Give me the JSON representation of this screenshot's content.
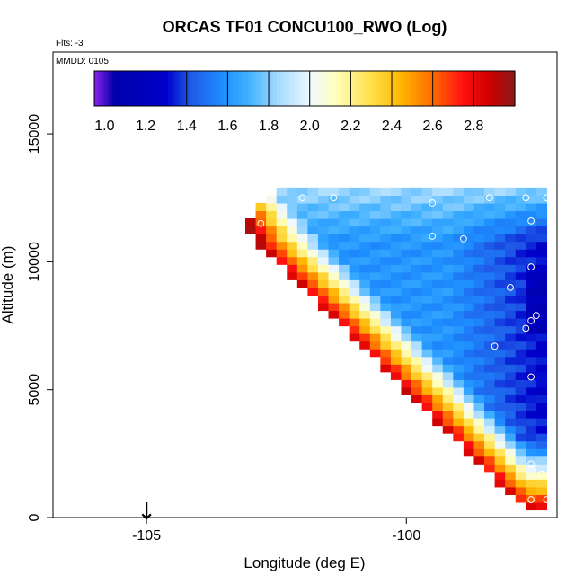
{
  "chart_data": {
    "type": "heatmap",
    "title": "ORCAS TF01 CONCU100_RWO (Log)",
    "flights_note": "Flts: -3",
    "date_note": "MMDD: 0105",
    "xlabel": "Longitude (deg E)",
    "ylabel": "Altitude (m)",
    "xlim": [
      -106.8,
      -97.1
    ],
    "ylim": [
      0,
      18200
    ],
    "x_ticks": [
      -105,
      -100
    ],
    "x_tick_labels": [
      "-105",
      "-100"
    ],
    "y_ticks": [
      0,
      5000,
      10000,
      15000
    ],
    "y_tick_labels": [
      "0",
      "5000",
      "10000",
      "15000"
    ],
    "colorbar": {
      "min": 0.95,
      "max": 3.0,
      "tick_values": [
        1.0,
        1.2,
        1.4,
        1.6,
        1.8,
        2.0,
        2.2,
        2.4,
        2.6,
        2.8
      ],
      "tick_labels": [
        "1.0",
        "1.2",
        "1.4",
        "1.6",
        "1.8",
        "2.0",
        "2.2",
        "2.4",
        "2.6",
        "2.8"
      ],
      "boundaries": [
        0.95,
        1.4,
        1.6,
        1.8,
        2.0,
        2.2,
        2.4,
        2.6,
        2.8,
        3.0
      ]
    },
    "color_stops": [
      {
        "v": 0.95,
        "c": "#8b20e8"
      },
      {
        "v": 1.05,
        "c": "#0000aa"
      },
      {
        "v": 1.3,
        "c": "#0000cc"
      },
      {
        "v": 1.42,
        "c": "#1e5ae8"
      },
      {
        "v": 1.58,
        "c": "#1e90ff"
      },
      {
        "v": 1.7,
        "c": "#3fb0ff"
      },
      {
        "v": 1.85,
        "c": "#a8dcff"
      },
      {
        "v": 2.0,
        "c": "#eef8ff"
      },
      {
        "v": 2.12,
        "c": "#ffffc0"
      },
      {
        "v": 2.3,
        "c": "#ffe04a"
      },
      {
        "v": 2.45,
        "c": "#ffb400"
      },
      {
        "v": 2.6,
        "c": "#ff6a00"
      },
      {
        "v": 2.75,
        "c": "#ff1010"
      },
      {
        "v": 2.88,
        "c": "#cc0000"
      },
      {
        "v": 3.0,
        "c": "#8b1a1a"
      }
    ],
    "domain": {
      "lon_step": 0.2,
      "alt_step": 300,
      "lon_max": -97.3,
      "upper_edge": [
        [
          -103.0,
          11600
        ],
        [
          -102.4,
          12800
        ],
        [
          -97.3,
          12800
        ]
      ],
      "lower_edge": [
        [
          -103.0,
          11200
        ],
        [
          -97.7,
          400
        ],
        [
          -97.3,
          400
        ]
      ]
    },
    "flight_point_color": "#ffffff",
    "flight_points": [
      {
        "lon": -101.5,
        "alt": 13600
      },
      {
        "lon": -100.9,
        "alt": 13500
      },
      {
        "lon": -100.9,
        "alt": 13100
      },
      {
        "lon": -102.8,
        "alt": 11500
      },
      {
        "lon": -102.0,
        "alt": 12500
      },
      {
        "lon": -101.4,
        "alt": 12500
      },
      {
        "lon": -99.5,
        "alt": 12300
      },
      {
        "lon": -98.4,
        "alt": 12500
      },
      {
        "lon": -97.7,
        "alt": 12500
      },
      {
        "lon": -97.3,
        "alt": 12500
      },
      {
        "lon": -97.6,
        "alt": 11600
      },
      {
        "lon": -99.5,
        "alt": 11000
      },
      {
        "lon": -98.9,
        "alt": 10900
      },
      {
        "lon": -97.6,
        "alt": 9800
      },
      {
        "lon": -98.0,
        "alt": 9000
      },
      {
        "lon": -97.5,
        "alt": 7900
      },
      {
        "lon": -97.6,
        "alt": 7700
      },
      {
        "lon": -97.7,
        "alt": 7400
      },
      {
        "lon": -98.3,
        "alt": 6700
      },
      {
        "lon": -97.6,
        "alt": 5500
      },
      {
        "lon": -97.4,
        "alt": 1700
      },
      {
        "lon": -97.6,
        "alt": 2100
      },
      {
        "lon": -97.6,
        "alt": 700
      },
      {
        "lon": -97.3,
        "alt": 700
      },
      {
        "lon": -97.2,
        "alt": 700
      }
    ],
    "arrow_marker": {
      "lon": -105.0,
      "label": "↓"
    }
  }
}
